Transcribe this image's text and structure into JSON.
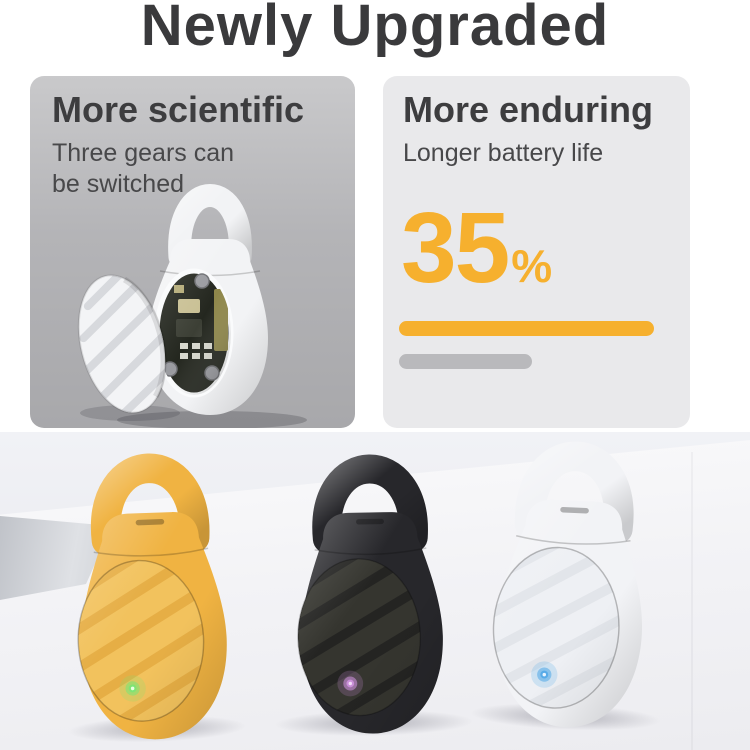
{
  "header": {
    "title": "Newly Upgraded"
  },
  "cards": {
    "scientific": {
      "title": "More scientific",
      "subtitle_line1": "Three gears can",
      "subtitle_line2": "be switched"
    },
    "enduring": {
      "title": "More enduring",
      "subtitle": "Longer battery life",
      "stat_value": "35",
      "stat_unit": "%",
      "progress": {
        "upgraded_bar_width": 255,
        "previous_bar_width": 133
      }
    }
  },
  "colors": {
    "title_text": "#3a3a3c",
    "heading_text": "#3d3d3f",
    "subtext": "#48484a",
    "card_left_top": "#c9c9cb",
    "card_left_bottom": "#a8a8ab",
    "card_right_bg": "#e9e9eb",
    "accent": "#f6b02e",
    "bar_gray": "#b9b9bc",
    "wall": "#e8e9ee",
    "table": "#f4f4f6",
    "internals_device_white": "#f2f3f5",
    "internals_pcb_dark": "#24271f"
  },
  "product_photo": {
    "devices": [
      {
        "name": "yellow",
        "body_color": "#f0b342",
        "face_color": "#f2c25d",
        "ridge_color": "#d9992f",
        "led_color": "#7fe474",
        "led_core": "#eaffe2"
      },
      {
        "name": "black",
        "body_color": "#27272b",
        "face_color": "#35352f",
        "ridge_color": "#141417",
        "led_color": "#c98fd8",
        "led_core": "#f3dcf8"
      },
      {
        "name": "white",
        "body_color": "#f2f3f6",
        "face_color": "#eef0f4",
        "ridge_color": "#d6d9df",
        "led_color": "#58abe8",
        "led_core": "#e8f4ff"
      }
    ]
  }
}
